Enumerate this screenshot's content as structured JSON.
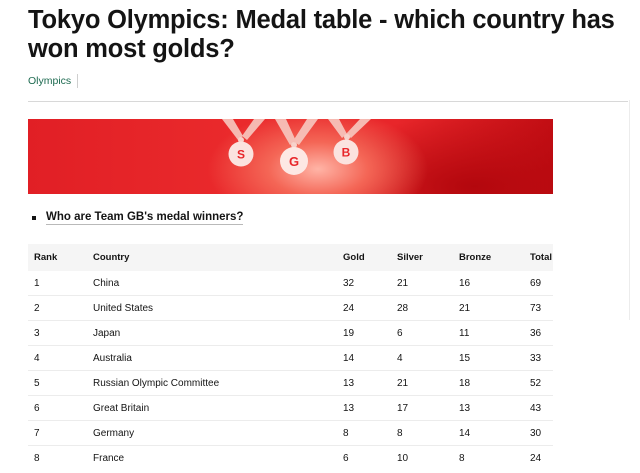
{
  "article": {
    "headline": "Tokyo Olympics: Medal table - which country has won most golds?",
    "topic_tag": "Olympics"
  },
  "banner": {
    "medal_letters": [
      "S",
      "G",
      "B"
    ],
    "colors": {
      "background": "#e8262a",
      "medal_fill": "#fbe3df",
      "letter": "#e8262a"
    }
  },
  "related_link": {
    "label": "Who are Team GB's medal winners?"
  },
  "medal_table": {
    "columns": [
      "Rank",
      "Country",
      "Gold",
      "Silver",
      "Bronze",
      "Total"
    ],
    "rows": [
      [
        "1",
        "China",
        "32",
        "21",
        "16",
        "69"
      ],
      [
        "2",
        "United States",
        "24",
        "28",
        "21",
        "73"
      ],
      [
        "3",
        "Japan",
        "19",
        "6",
        "11",
        "36"
      ],
      [
        "4",
        "Australia",
        "14",
        "4",
        "15",
        "33"
      ],
      [
        "5",
        "Russian Olympic Committee",
        "13",
        "21",
        "18",
        "52"
      ],
      [
        "6",
        "Great Britain",
        "13",
        "17",
        "13",
        "43"
      ],
      [
        "7",
        "Germany",
        "8",
        "8",
        "14",
        "30"
      ],
      [
        "8",
        "France",
        "6",
        "10",
        "8",
        "24"
      ]
    ]
  }
}
